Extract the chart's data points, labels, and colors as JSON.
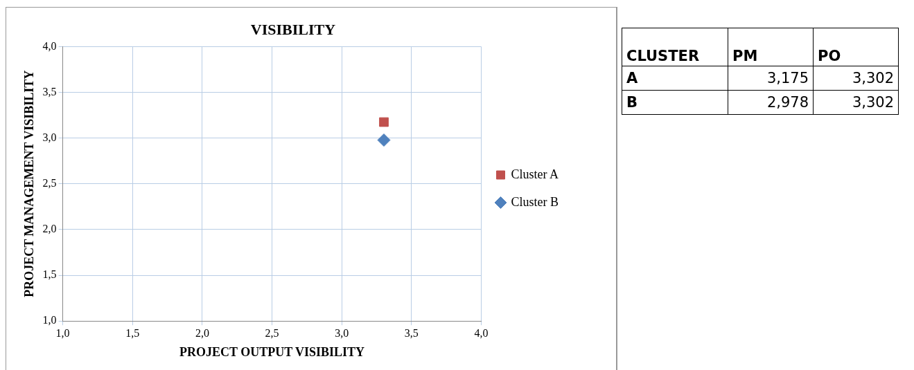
{
  "chart_data": [
    {
      "type": "scatter",
      "title": "VISIBILITY",
      "xlabel": "PROJECT OUTPUT VISIBILITY",
      "ylabel": "PROJECT MANAGEMENT VISIBILITY",
      "series": [
        {
          "name": "Cluster A",
          "color": "#c0504d",
          "marker": "square",
          "x": [
            3.302
          ],
          "values": [
            3.175
          ]
        },
        {
          "name": "Cluster B",
          "color": "#4f81bd",
          "marker": "diamond",
          "x": [
            3.302
          ],
          "values": [
            2.978
          ]
        }
      ],
      "xlim": [
        1,
        4
      ],
      "ylim": [
        1,
        4
      ],
      "xticks": [
        {
          "value": 1,
          "label": "1,0"
        },
        {
          "value": 1.5,
          "label": "1,5"
        },
        {
          "value": 2,
          "label": "2,0"
        },
        {
          "value": 2.5,
          "label": "2,5"
        },
        {
          "value": 3,
          "label": "3,0"
        },
        {
          "value": 3.5,
          "label": "3,5"
        },
        {
          "value": 4,
          "label": "4,0"
        }
      ],
      "yticks": [
        {
          "value": 1,
          "label": "1,0"
        },
        {
          "value": 1.5,
          "label": "1,5"
        },
        {
          "value": 2,
          "label": "2,0"
        },
        {
          "value": 2.5,
          "label": "2,5"
        },
        {
          "value": 3,
          "label": "3,0"
        },
        {
          "value": 3.5,
          "label": "3,5"
        },
        {
          "value": 4,
          "label": "4,0"
        }
      ],
      "grid": true,
      "legend": "right"
    },
    {
      "type": "other",
      "annotations": [
        "CLUSTER",
        "PM",
        "PO",
        "A",
        "3,175",
        "3,302",
        "B",
        "2,978",
        "3,302"
      ]
    }
  ]
}
